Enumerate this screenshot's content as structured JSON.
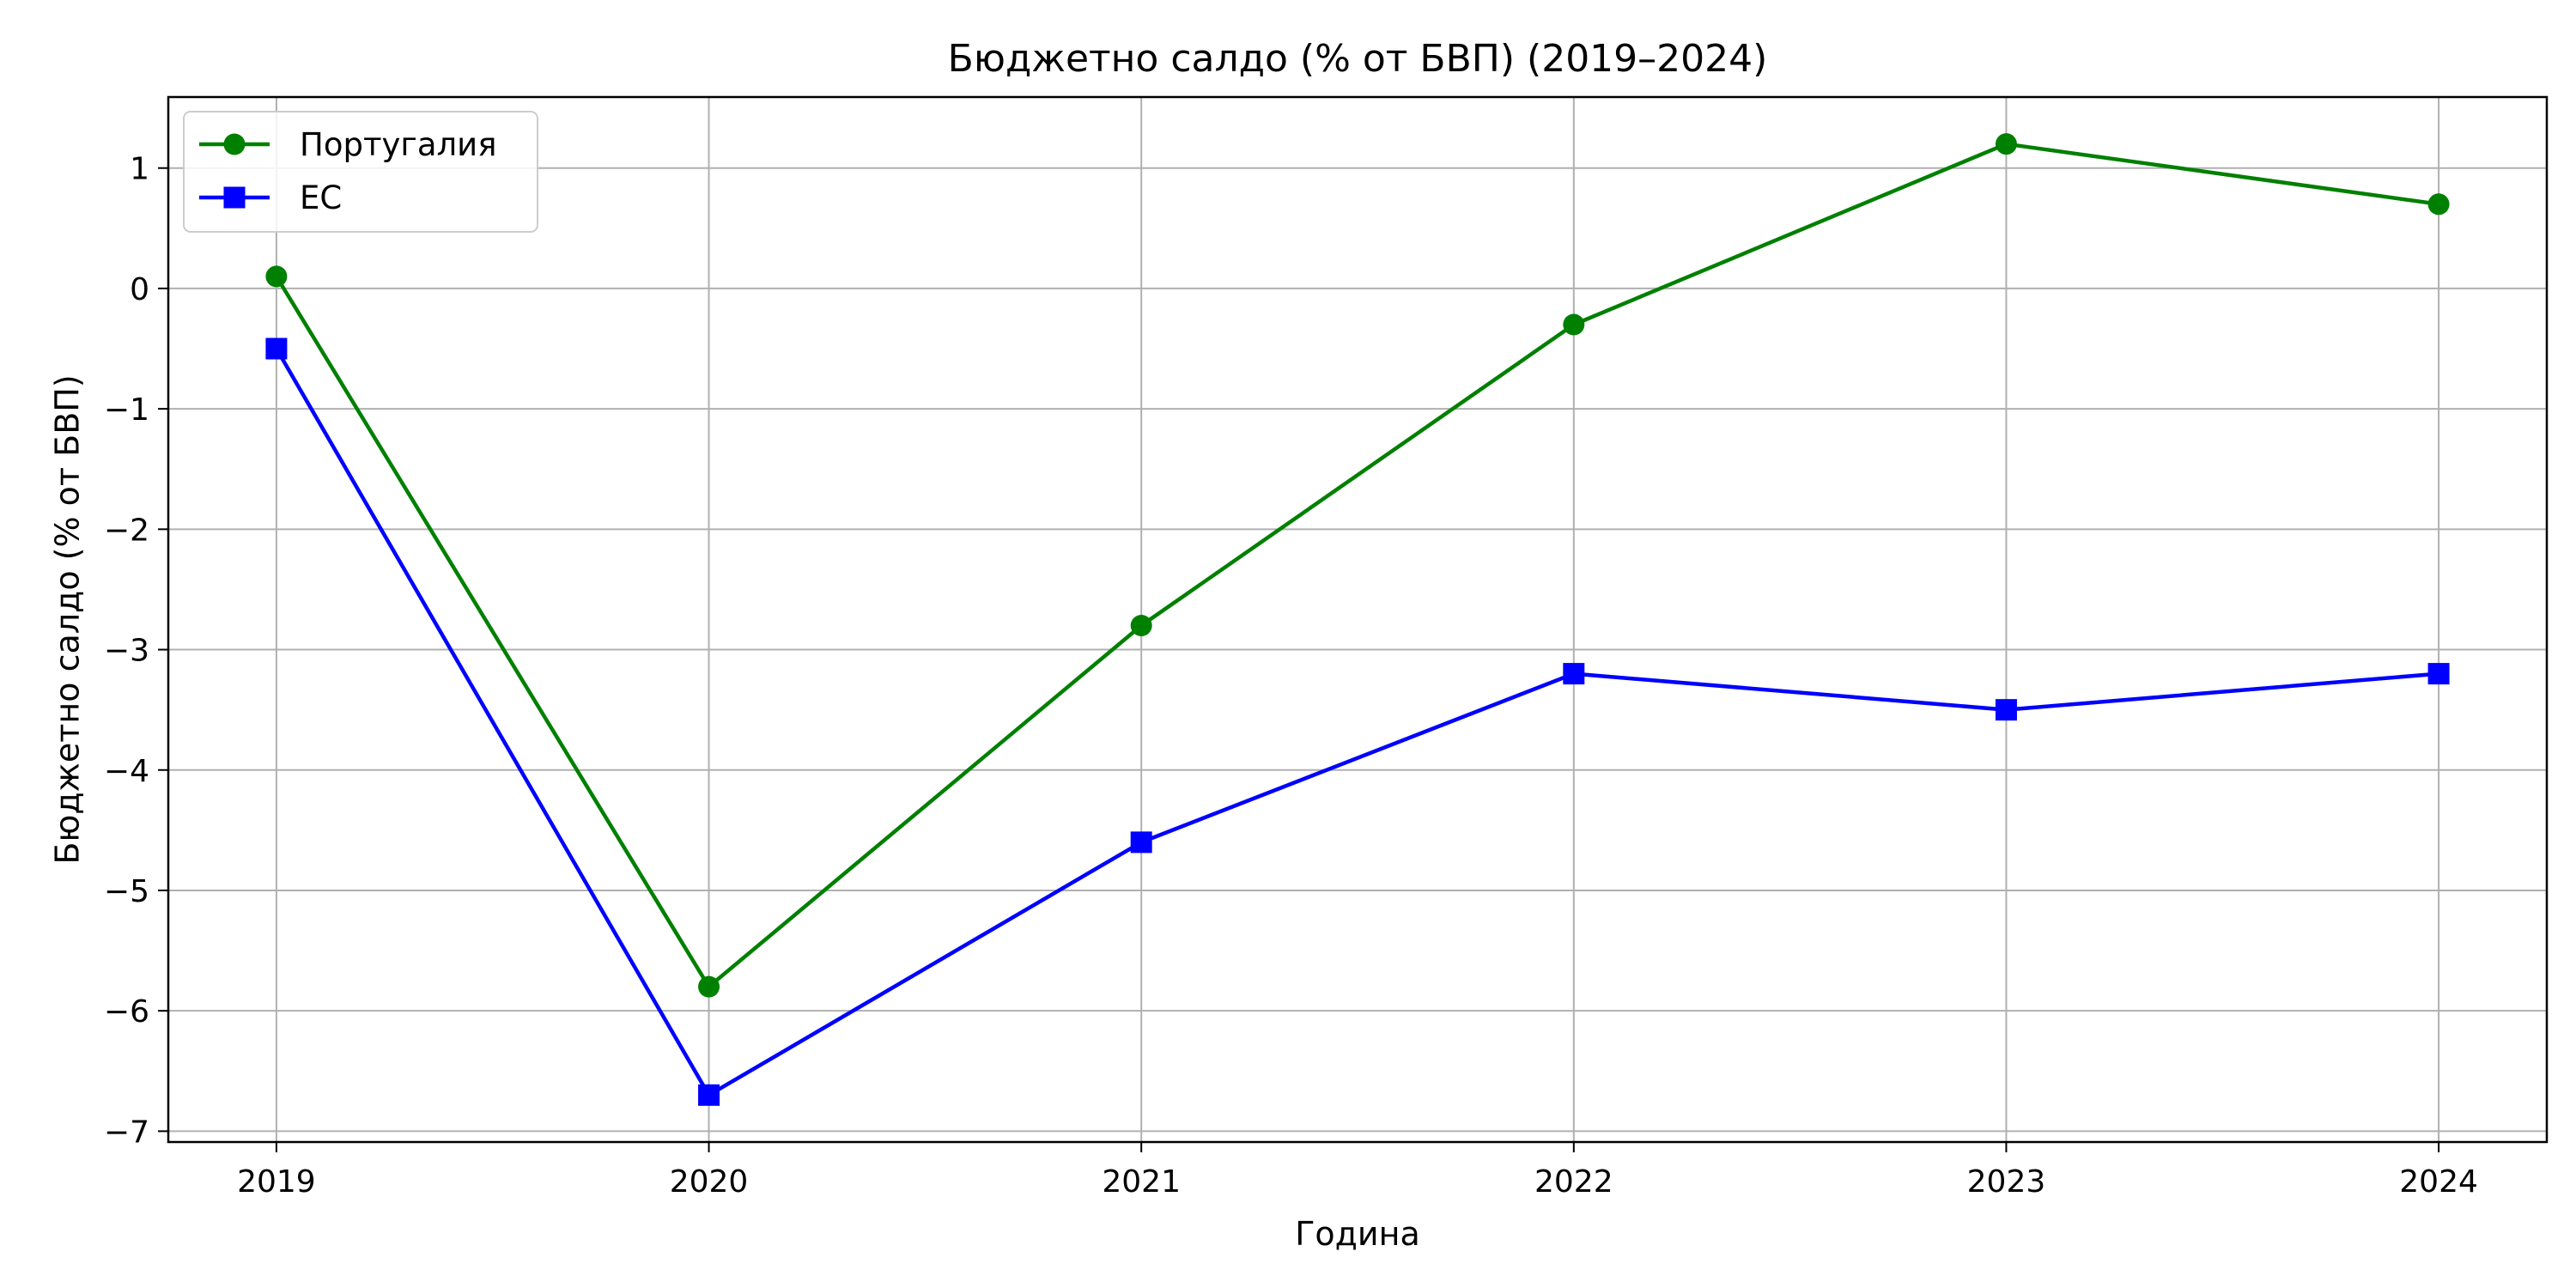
{
  "chart_data": {
    "type": "line",
    "title": "Бюджетно салдо (% от БВП) (2019–2024)",
    "xlabel": "Година",
    "ylabel": "Бюджетно салдо (% от БВП)",
    "x": [
      2019,
      2020,
      2021,
      2022,
      2023,
      2024
    ],
    "x_tick_labels": [
      "2019",
      "2020",
      "2021",
      "2022",
      "2023",
      "2024"
    ],
    "y_ticks": [
      1,
      0,
      -1,
      -2,
      -3,
      -4,
      -5,
      -6,
      -7
    ],
    "y_tick_labels": [
      "1",
      "0",
      "−1",
      "−2",
      "−3",
      "−4",
      "−5",
      "−6",
      "−7"
    ],
    "xlim": [
      2018.75,
      2024.25
    ],
    "ylim": [
      -7.09,
      1.59
    ],
    "grid": true,
    "legend_position": "upper-left",
    "series": [
      {
        "name": "Португалия",
        "color": "#008000",
        "marker": "circle",
        "values": [
          0.1,
          -5.8,
          -2.8,
          -0.3,
          1.2,
          0.7
        ]
      },
      {
        "name": "ЕС",
        "color": "#0000ff",
        "marker": "square",
        "values": [
          -0.5,
          -6.7,
          -4.6,
          -3.2,
          -3.5,
          -3.2
        ]
      }
    ]
  }
}
